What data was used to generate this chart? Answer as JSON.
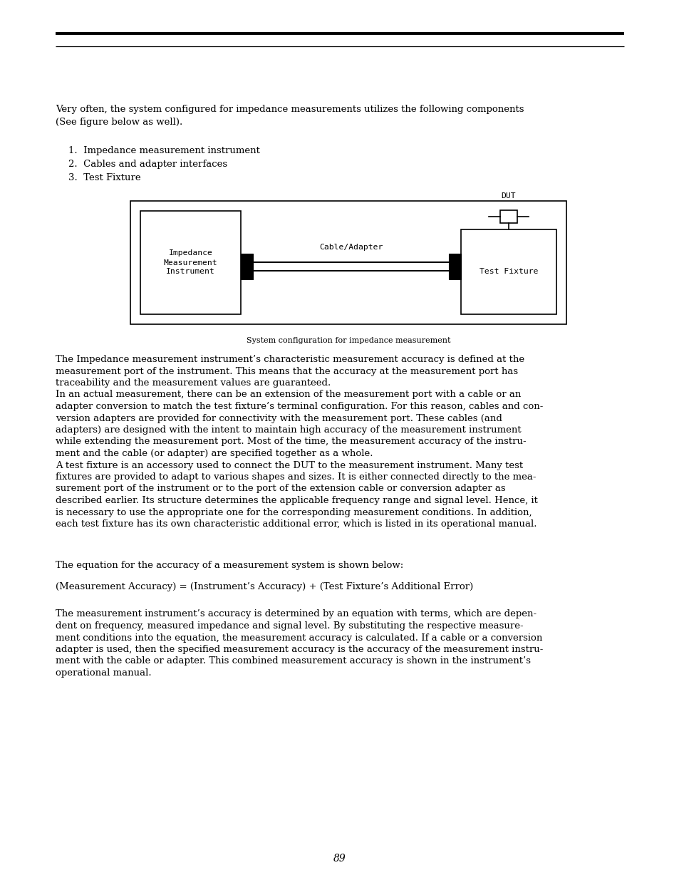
{
  "bg_color": "#ffffff",
  "page_number": "89",
  "body_lines_1": [
    "The Impedance measurement instrument’s characteristic measurement accuracy is defined at the",
    "measurement port of the instrument. This means that the accuracy at the measurement port has",
    "traceability and the measurement values are guaranteed.",
    "In an actual measurement, there can be an extension of the measurement port with a cable or an",
    "adapter conversion to match the test fixture’s terminal configuration. For this reason, cables and con-",
    "version adapters are provided for connectivity with the measurement port. These cables (and",
    "adapters) are designed with the intent to maintain high accuracy of the measurement instrument",
    "while extending the measurement port. Most of the time, the measurement accuracy of the instru-",
    "ment and the cable (or adapter) are specified together as a whole.",
    "A test fixture is an accessory used to connect the DUT to the measurement instrument. Many test",
    "fixtures are provided to adapt to various shapes and sizes. It is either connected directly to the mea-",
    "surement port of the instrument or to the port of the extension cable or conversion adapter as",
    "described earlier. Its structure determines the applicable frequency range and signal level. Hence, it",
    "is necessary to use the appropriate one for the corresponding measurement conditions. In addition,",
    "each test fixture has its own characteristic additional error, which is listed in its operational manual."
  ],
  "body_lines_2": [
    "The measurement instrument’s accuracy is determined by an equation with terms, which are depen-",
    "dent on frequency, measured impedance and signal level. By substituting the respective measure-",
    "ment conditions into the equation, the measurement accuracy is calculated. If a cable or a conversion",
    "adapter is used, then the specified measurement accuracy is the accuracy of the measurement instru-",
    "ment with the cable or adapter. This combined measurement accuracy is shown in the instrument’s",
    "operational manual."
  ],
  "para_eq_intro": "The equation for the accuracy of a measurement system is shown below:",
  "para_equation": "(Measurement Accuracy) = (Instrument’s Accuracy) + (Test Fixture’s Additional Error)",
  "figure_caption": "System configuration for impedance measurement",
  "list_items": [
    "1.  Impedance measurement instrument",
    "2.  Cables and adapter interfaces",
    "3.  Test Fixture"
  ],
  "font_size_body": 9.5,
  "font_size_caption": 8.0,
  "font_size_page": 10,
  "font_size_mono": 8.2
}
